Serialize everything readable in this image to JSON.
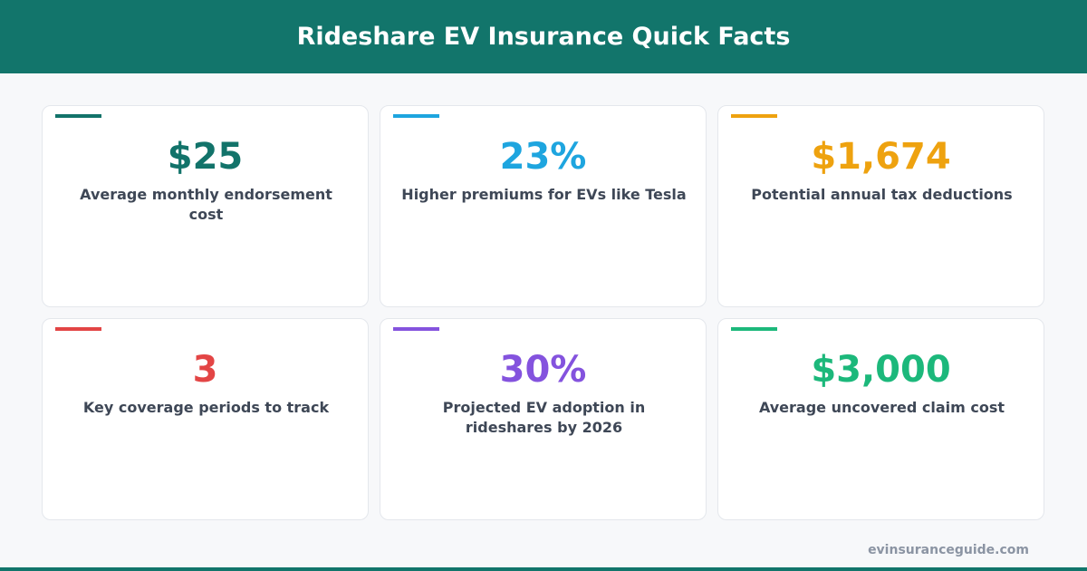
{
  "header": {
    "title": "Rideshare EV Insurance Quick Facts"
  },
  "cards": [
    {
      "value": "$25",
      "label": "Average monthly endorsement cost",
      "color": "#12736a"
    },
    {
      "value": "23%",
      "label": "Higher premiums for EVs like Tesla",
      "color": "#1ea5df"
    },
    {
      "value": "$1,674",
      "label": "Potential annual tax deductions",
      "color": "#eea20f"
    },
    {
      "value": "3",
      "label": "Key coverage periods to track",
      "color": "#e34545"
    },
    {
      "value": "30%",
      "label": "Projected EV adoption in rideshares by 2026",
      "color": "#8453de"
    },
    {
      "value": "$3,000",
      "label": "Average uncovered claim cost",
      "color": "#1cb87b"
    }
  ],
  "footer": {
    "site": "evinsuranceguide.com"
  }
}
